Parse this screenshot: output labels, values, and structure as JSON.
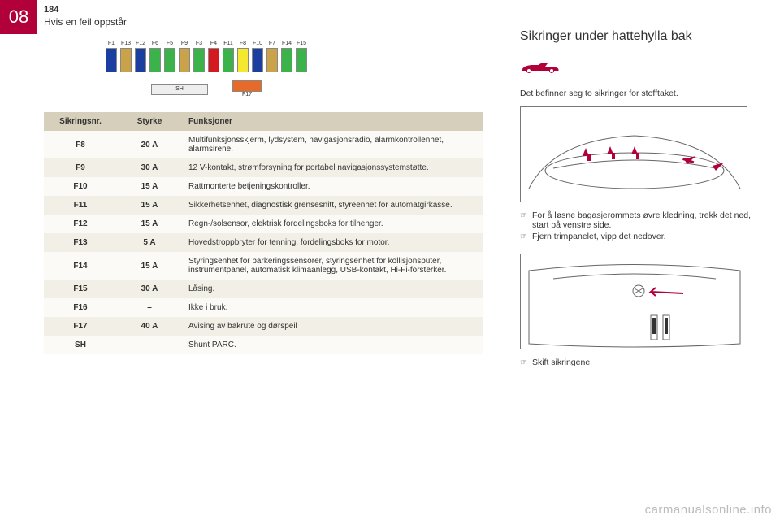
{
  "chapter_badge": "08",
  "page_number": "184",
  "page_subtitle": "Hvis en feil oppstår",
  "fuse_diagram": {
    "top_labels": [
      "F1",
      "F13",
      "F12",
      "F6",
      "F5",
      "F9",
      "F3",
      "F4",
      "F11",
      "F8",
      "F10",
      "F7",
      "F14",
      "F15"
    ],
    "fuse_colors": [
      "#1b3fa0",
      "#c9a24a",
      "#1b3fa0",
      "#3bb34a",
      "#3bb34a",
      "#c9a24a",
      "#3bb34a",
      "#d51920",
      "#3bb34a",
      "#f5e92f",
      "#1b3fa0",
      "#c9a24a",
      "#3bb34a",
      "#3bb34a"
    ],
    "sh_label": "SH",
    "f17_label": "F17",
    "f17_color": "#e86a28",
    "border_color": "#888888"
  },
  "table": {
    "headers": [
      "Sikringsnr.",
      "Styrke",
      "Funksjoner"
    ],
    "rows": [
      [
        "F8",
        "20 A",
        "Multifunksjonsskjerm, lydsystem, navigasjonsradio, alarmkontrollenhet, alarmsirene."
      ],
      [
        "F9",
        "30 A",
        "12 V-kontakt, strømforsyning for portabel navigasjonssystemstøtte."
      ],
      [
        "F10",
        "15 A",
        "Rattmonterte betjeningskontroller."
      ],
      [
        "F11",
        "15 A",
        "Sikkerhetsenhet, diagnostisk grensesnitt, styreenhet for automatgirkasse."
      ],
      [
        "F12",
        "15 A",
        "Regn-/solsensor, elektrisk fordelingsboks for tilhenger."
      ],
      [
        "F13",
        "5 A",
        "Hovedstroppbryter for tenning, fordelingsboks for motor."
      ],
      [
        "F14",
        "15 A",
        "Styringsenhet for parkeringssensorer, styringsenhet for kollisjonsputer, instrumentpanel, automatisk klimaanlegg, USB-kontakt, Hi-Fi-forsterker."
      ],
      [
        "F15",
        "30 A",
        "Låsing."
      ],
      [
        "F16",
        "–",
        "Ikke i bruk."
      ],
      [
        "F17",
        "40 A",
        "Avising av bakrute og dørspeil"
      ],
      [
        "SH",
        "–",
        "Shunt PARC."
      ]
    ],
    "header_bg": "#d6cfbb",
    "row_bg_odd": "#fbfaf7",
    "row_bg_even": "#f2efe6"
  },
  "right": {
    "title": "Sikringer under hattehylla bak",
    "car_icon_color": "#b2003b",
    "note": "Det befinner seg to sikringer for stofftaket.",
    "bullets1": [
      "For å løsne bagasjerommets øvre kledning, trekk det ned, start på venstre side.",
      "Fjern trimpanelet, vipp det nedover."
    ],
    "bullets2": [
      "Skift sikringene."
    ],
    "illus_arrow_color": "#b2003b",
    "illus_line_color": "#666666"
  },
  "watermark": "carmanualsonline.info"
}
